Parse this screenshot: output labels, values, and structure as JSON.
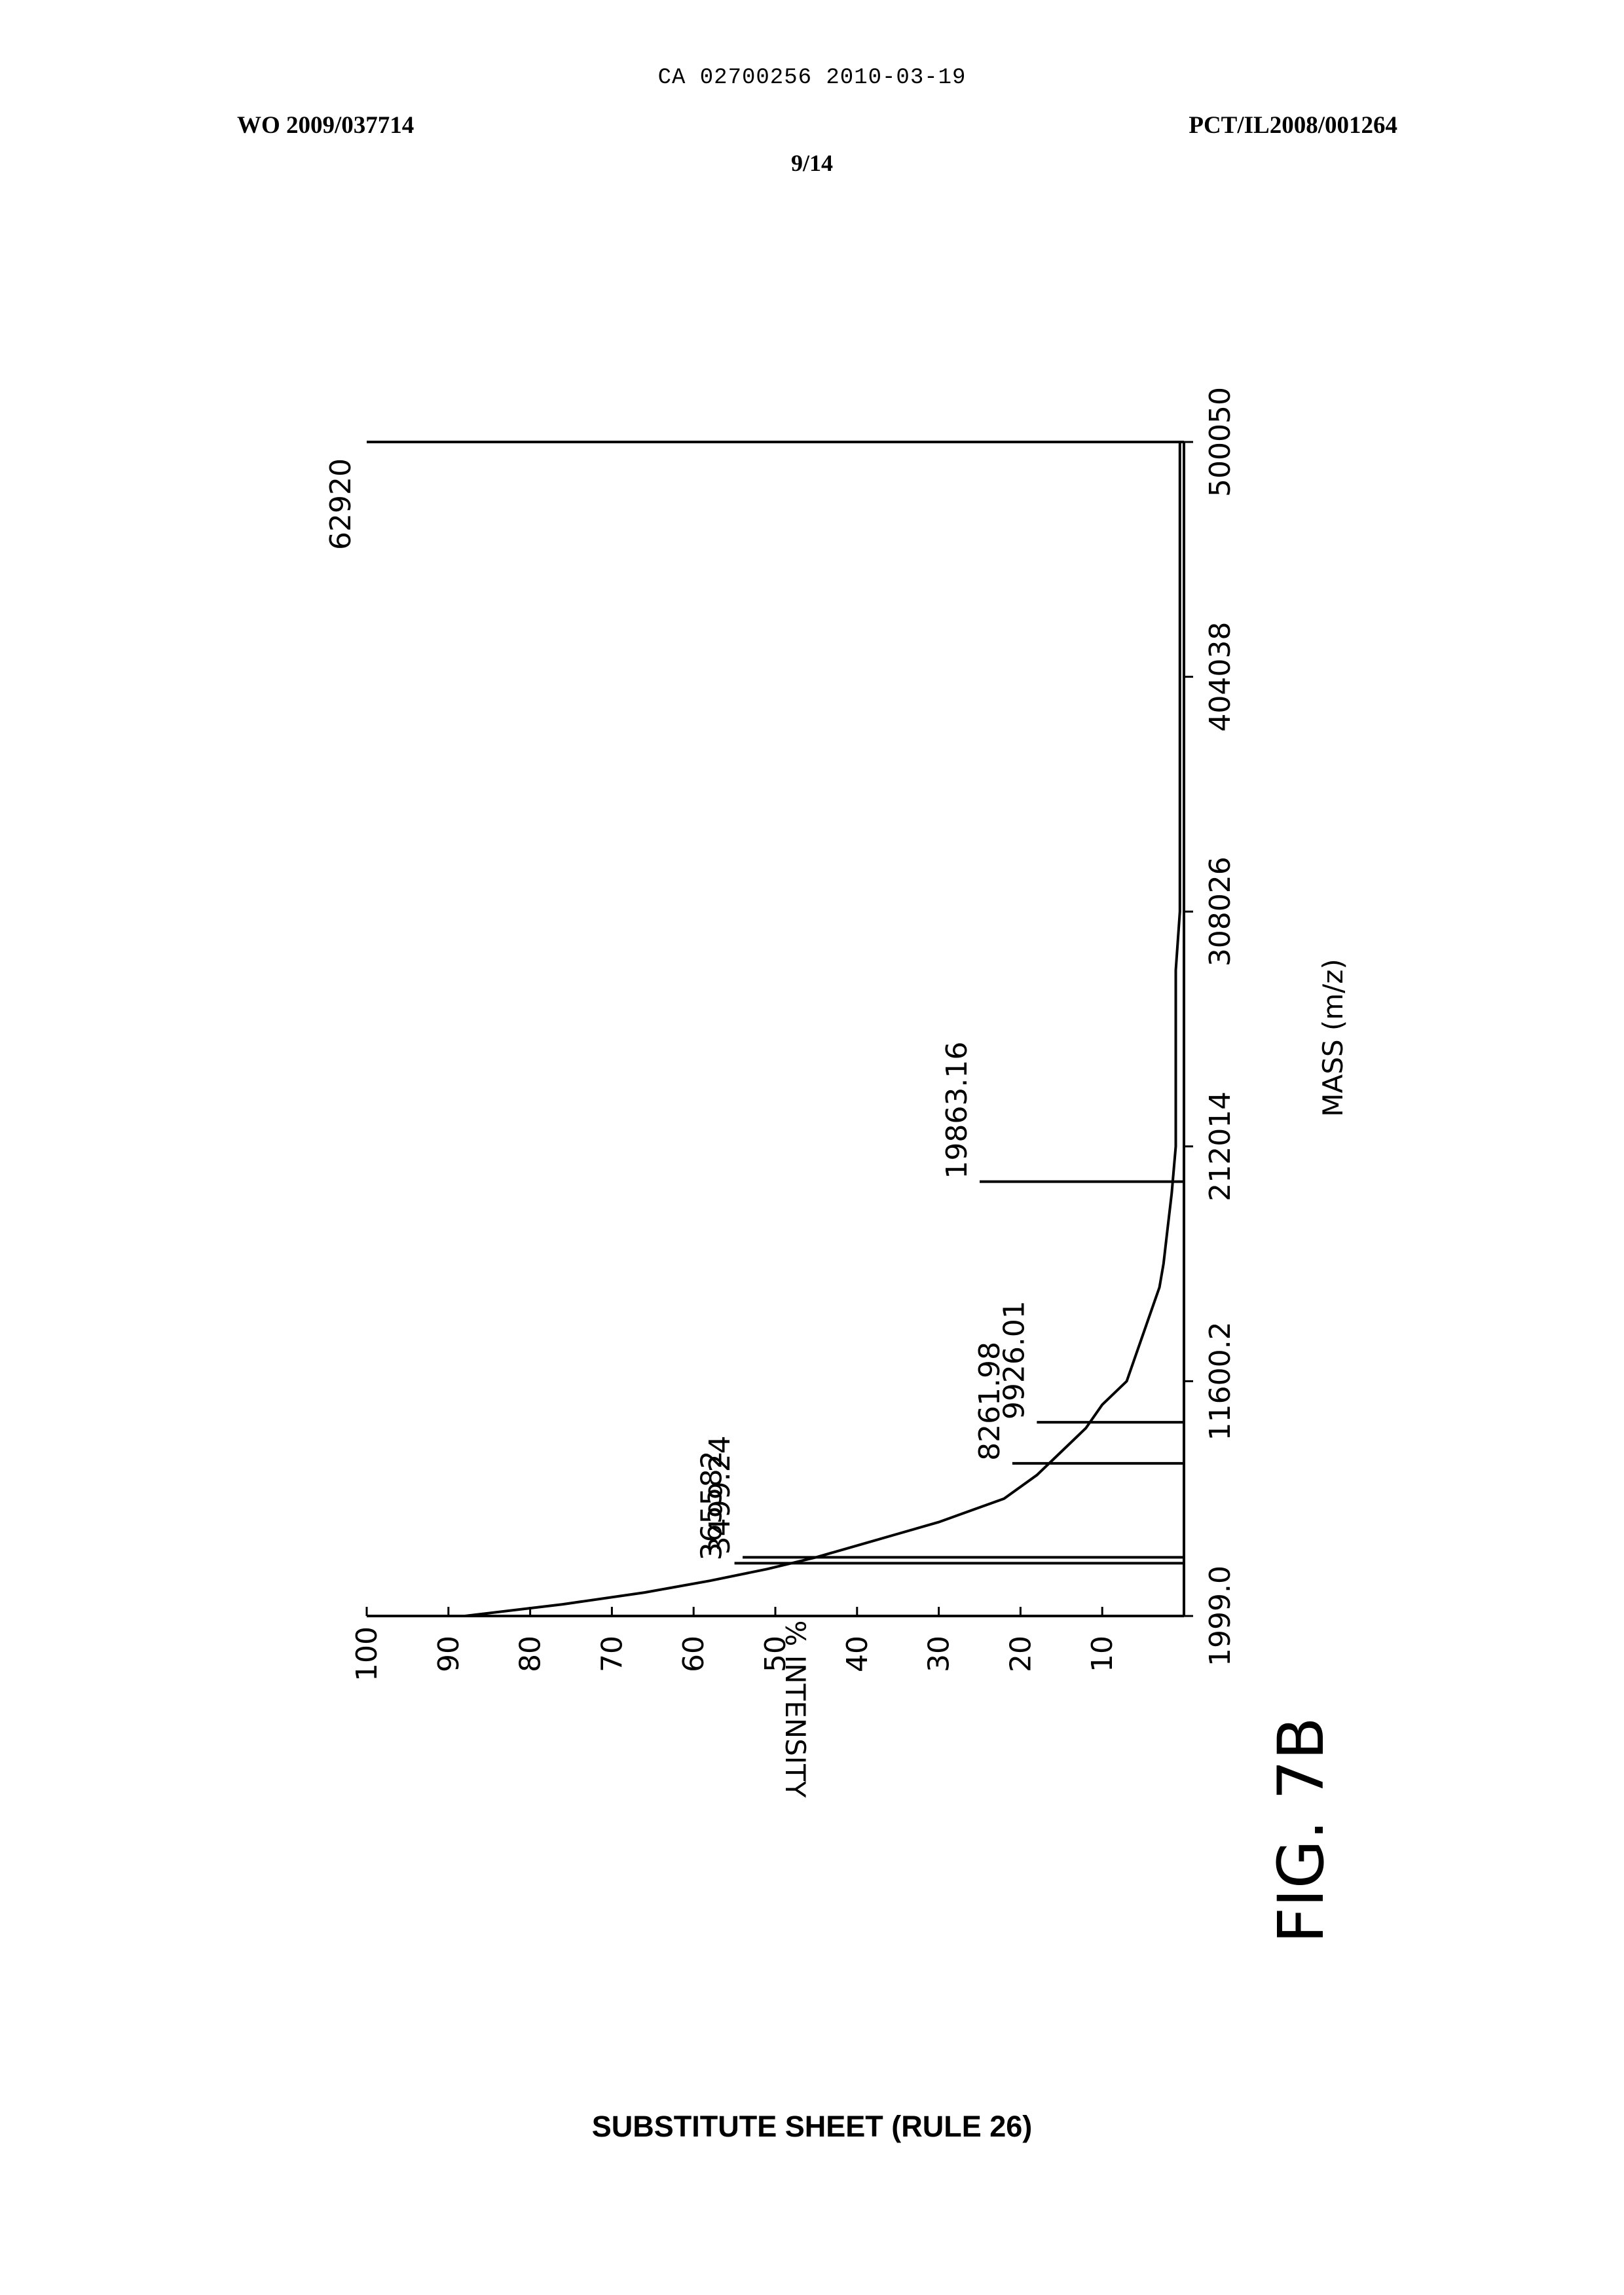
{
  "header": {
    "ca": "CA 02700256 2010-03-19",
    "wo": "WO 2009/037714",
    "pct": "PCT/IL2008/001264",
    "page": "9/14"
  },
  "footer": "SUBSTITUTE SHEET (RULE 26)",
  "figure_label": "FIG. 7B",
  "chart_data": {
    "type": "line",
    "xlabel": "MASS (m/z)",
    "ylabel": "% INTENSITY",
    "x_ticks": [
      "1999.0",
      "11600.2",
      "212014",
      "308026",
      "404038",
      "500050"
    ],
    "y_ticks": [
      10,
      20,
      30,
      40,
      50,
      60,
      70,
      80,
      90,
      100
    ],
    "ylim": [
      0,
      100
    ],
    "full_scale_label": "62920",
    "grid": false,
    "series": [
      {
        "x_tick_fraction": [
          0.0,
          0.01,
          0.02,
          0.03,
          0.04,
          0.05,
          0.06,
          0.07,
          0.08,
          0.09,
          0.1,
          0.12,
          0.14,
          0.16,
          0.18,
          0.2,
          0.22,
          0.24,
          0.26,
          0.28,
          0.3,
          0.33,
          0.36,
          0.4,
          0.44,
          0.48,
          0.5,
          0.52,
          0.55,
          0.6,
          0.7,
          0.8,
          0.9,
          1.0
        ],
        "y": [
          88,
          76,
          66,
          58,
          51,
          45,
          40,
          35,
          30,
          26,
          22,
          18,
          15,
          12,
          10,
          7,
          6,
          5,
          4,
          3,
          2.5,
          2,
          1.5,
          1,
          1,
          1,
          1,
          1,
          1,
          0.5,
          0.5,
          0.5,
          0.5,
          0.5
        ]
      }
    ],
    "peaks": [
      {
        "label": "365582",
        "x_tick_fraction": 0.045,
        "y": 55
      },
      {
        "label": "3499.24",
        "x_tick_fraction": 0.05,
        "y": 54
      },
      {
        "label": "8261.98",
        "x_tick_fraction": 0.13,
        "y": 21
      },
      {
        "label": "9926.01",
        "x_tick_fraction": 0.165,
        "y": 18
      },
      {
        "label": "19863.16",
        "x_tick_fraction": 0.37,
        "y": 25
      }
    ]
  }
}
